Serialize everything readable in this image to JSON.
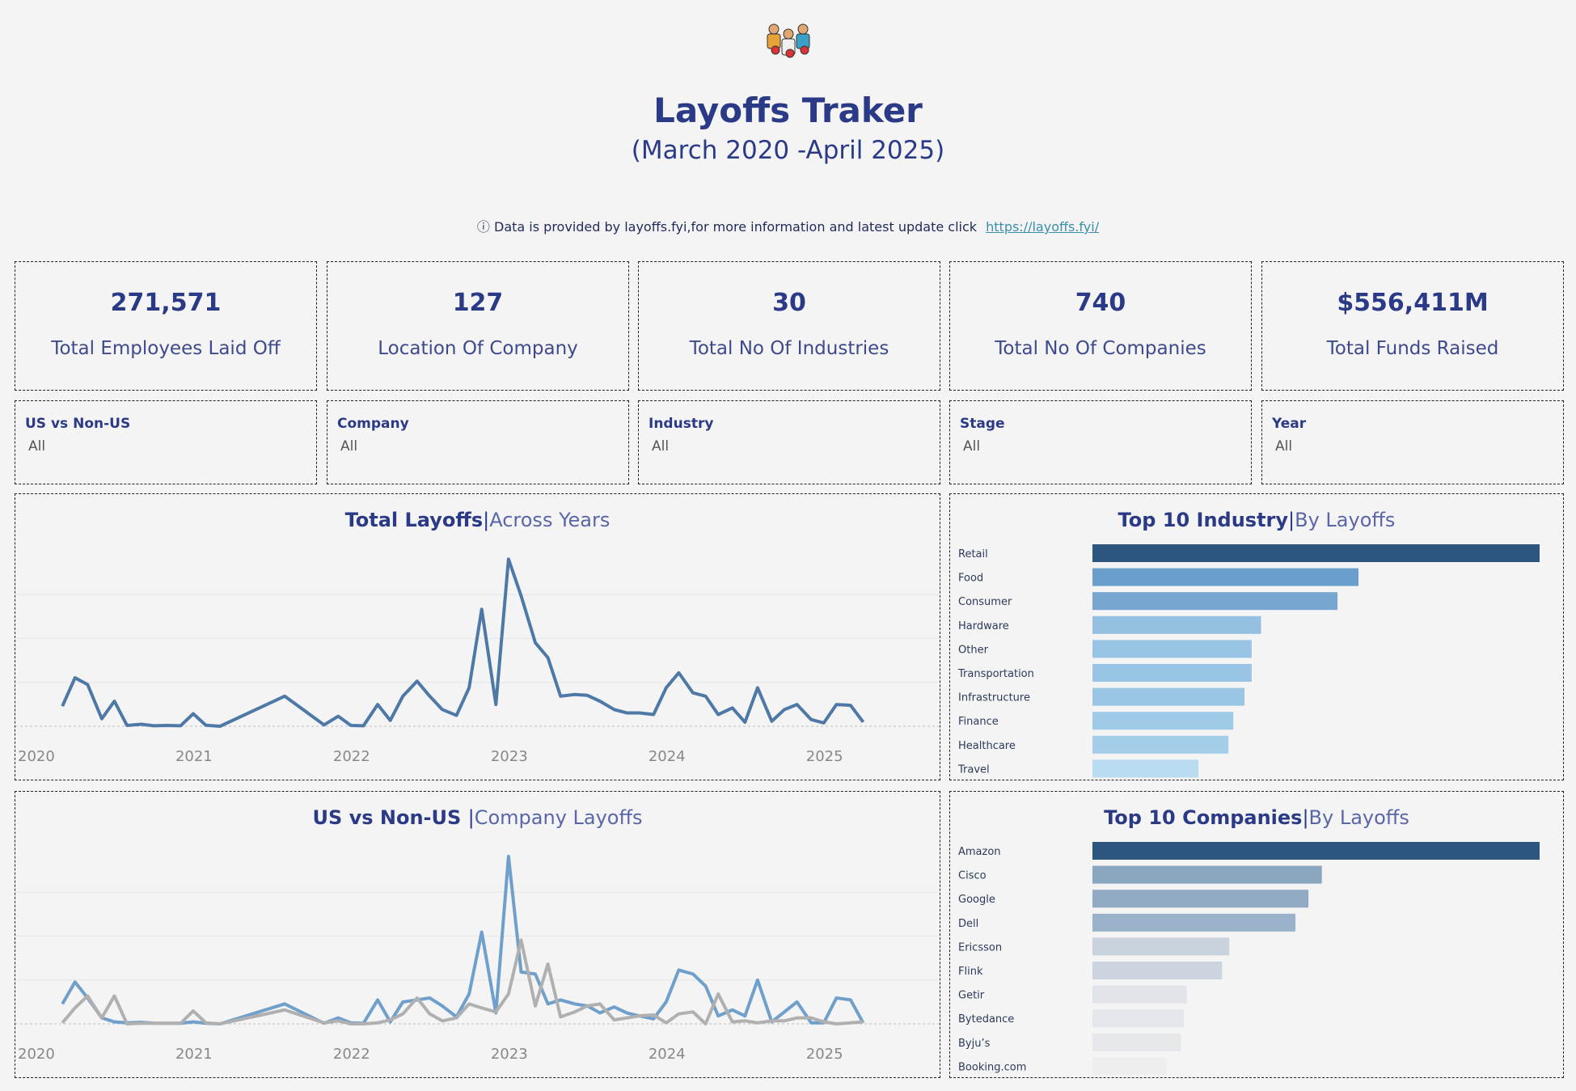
{
  "header": {
    "title": "Layoffs Traker",
    "subtitle": "(March 2020  -April 2025)",
    "info_icon": "info-icon",
    "info_text": "Data is provided by layoffs.fyi,for more information and latest update click",
    "info_link": "https://layoffs.fyi/"
  },
  "kpis": [
    {
      "value": "271,571",
      "label": "Total Employees Laid Off"
    },
    {
      "value": "127",
      "label": "Location Of Company"
    },
    {
      "value": "30",
      "label": "Total No Of Industries"
    },
    {
      "value": "740",
      "label": "Total No Of Companies"
    },
    {
      "value": "$556,411M",
      "label": "Total Funds Raised"
    }
  ],
  "filters": [
    {
      "label": "US vs Non-US",
      "value": "All"
    },
    {
      "label": "Company",
      "value": "All"
    },
    {
      "label": "Industry",
      "value": "All"
    },
    {
      "label": "Stage",
      "value": "All"
    },
    {
      "label": "Year",
      "value": "All"
    }
  ],
  "panels": {
    "total_layoffs": {
      "title_bold": "Total Layoffs",
      "title_rest": "Across Years"
    },
    "us_vs_nonus": {
      "title_bold": "US vs Non-US ",
      "title_rest": "Company Layoffs"
    },
    "top_industry": {
      "title_bold": "Top 10 Industry",
      "title_rest": "By Layoffs"
    },
    "top_companies": {
      "title_bold": "Top 10 Companies",
      "title_rest": "By Layoffs"
    }
  },
  "colors": {
    "title": "#2b3a86",
    "line_main": "#4e79a7",
    "line_us": "#6f9fcb",
    "line_nonus": "#b0b0b0",
    "link": "#3a8fa8"
  },
  "chart_data": [
    {
      "type": "line",
      "name": "total_layoffs",
      "x_ticks": [
        "2020",
        "2021",
        "2022",
        "2023",
        "2024",
        "2025"
      ],
      "x": [
        2020.17,
        2020.25,
        2020.33,
        2020.42,
        2020.5,
        2020.58,
        2020.67,
        2020.75,
        2020.83,
        2020.92,
        2021.0,
        2021.08,
        2021.17,
        2021.58,
        2021.83,
        2021.92,
        2022.0,
        2022.08,
        2022.17,
        2022.25,
        2022.33,
        2022.42,
        2022.5,
        2022.58,
        2022.67,
        2022.75,
        2022.83,
        2022.92,
        2023.0,
        2023.08,
        2023.17,
        2023.25,
        2023.33,
        2023.42,
        2023.5,
        2023.58,
        2023.67,
        2023.75,
        2023.83,
        2023.92,
        2024.0,
        2024.08,
        2024.17,
        2024.25,
        2024.33,
        2024.42,
        2024.5,
        2024.58,
        2024.67,
        2024.75,
        2024.83,
        2024.92,
        2025.0,
        2025.08,
        2025.17,
        2025.25
      ],
      "series": [
        {
          "values": [
            1200,
            2900,
            2500,
            450,
            1500,
            50,
            120,
            30,
            50,
            30,
            750,
            60,
            0,
            1800,
            80,
            600,
            50,
            30,
            1300,
            350,
            1800,
            2700,
            1800,
            1000,
            650,
            2300,
            7000,
            1300,
            10000,
            7800,
            5000,
            4100,
            1800,
            1900,
            1850,
            1500,
            1000,
            800,
            800,
            700,
            2300,
            3200,
            2000,
            1800,
            700,
            1100,
            240,
            2300,
            300,
            1000,
            1300,
            400,
            200,
            1300,
            1250,
            250
          ]
        }
      ],
      "ylim": [
        0,
        10500
      ]
    },
    {
      "type": "line",
      "name": "us_vs_nonus",
      "x_ticks": [
        "2020",
        "2021",
        "2022",
        "2023",
        "2024",
        "2025"
      ],
      "x": [
        2020.17,
        2020.25,
        2020.33,
        2020.42,
        2020.5,
        2020.58,
        2020.67,
        2020.75,
        2020.83,
        2020.92,
        2021.0,
        2021.08,
        2021.17,
        2021.58,
        2021.83,
        2021.92,
        2022.0,
        2022.08,
        2022.17,
        2022.25,
        2022.33,
        2022.42,
        2022.5,
        2022.58,
        2022.67,
        2022.75,
        2022.83,
        2022.92,
        2023.0,
        2023.08,
        2023.17,
        2023.25,
        2023.33,
        2023.42,
        2023.5,
        2023.58,
        2023.67,
        2023.75,
        2023.83,
        2023.92,
        2024.0,
        2024.08,
        2024.17,
        2024.25,
        2024.33,
        2024.42,
        2024.5,
        2024.58,
        2024.67,
        2024.75,
        2024.83,
        2024.92,
        2025.0,
        2025.08,
        2025.17,
        2025.25
      ],
      "series": [
        {
          "values": [
            1000,
            2100,
            1300,
            300,
            100,
            50,
            80,
            30,
            30,
            30,
            100,
            30,
            0,
            1000,
            30,
            300,
            50,
            30,
            1200,
            100,
            1100,
            1200,
            1300,
            900,
            350,
            1500,
            4600,
            550,
            8400,
            2600,
            2500,
            1000,
            1200,
            1000,
            900,
            550,
            850,
            550,
            400,
            250,
            1100,
            2700,
            2500,
            1900,
            400,
            700,
            400,
            2200,
            100,
            600,
            1100,
            50,
            50,
            1300,
            1200,
            50
          ]
        },
        {
          "values": [
            50,
            800,
            1400,
            300,
            1400,
            0,
            30,
            30,
            30,
            30,
            650,
            50,
            0,
            700,
            50,
            150,
            0,
            0,
            50,
            200,
            500,
            1300,
            500,
            150,
            300,
            1000,
            800,
            600,
            1500,
            4200,
            900,
            3000,
            350,
            600,
            900,
            1000,
            200,
            300,
            400,
            450,
            50,
            500,
            600,
            0,
            1500,
            100,
            150,
            50,
            150,
            150,
            300,
            300,
            100,
            0,
            50,
            100
          ]
        }
      ],
      "ylim": [
        0,
        8800
      ]
    },
    {
      "type": "bar",
      "name": "top_industry",
      "categories": [
        "Retail",
        "Food",
        "Consumer",
        "Hardware",
        "Other",
        "Transportation",
        "Infrastructure",
        "Finance",
        "Healthcare",
        "Travel"
      ],
      "values": [
        100,
        59.5,
        54.8,
        37.7,
        35.6,
        35.6,
        34.0,
        31.5,
        30.4,
        23.7
      ],
      "colors": [
        "#2c5580",
        "#6b9fcb",
        "#77a7d0",
        "#94c0e2",
        "#98c4e5",
        "#98c4e5",
        "#9ac6e6",
        "#9fcae8",
        "#a3cde9",
        "#b9dcf1"
      ]
    },
    {
      "type": "bar",
      "name": "top_companies",
      "categories": [
        "Amazon",
        "Cisco",
        "Google",
        "Dell",
        "Ericsson",
        "Flink",
        "Getir",
        "Bytedance",
        "Byju’s",
        "Booking.com"
      ],
      "values": [
        100,
        51.3,
        48.3,
        45.4,
        30.6,
        29.0,
        21.1,
        20.4,
        19.8,
        16.5
      ],
      "colors": [
        "#2c5580",
        "#8aa5be",
        "#90aac3",
        "#9ab3cb",
        "#c9d3de",
        "#ccd5df",
        "#e1e5ea",
        "#e3e6ea",
        "#e6e8ec",
        "#eeeeee"
      ]
    }
  ]
}
